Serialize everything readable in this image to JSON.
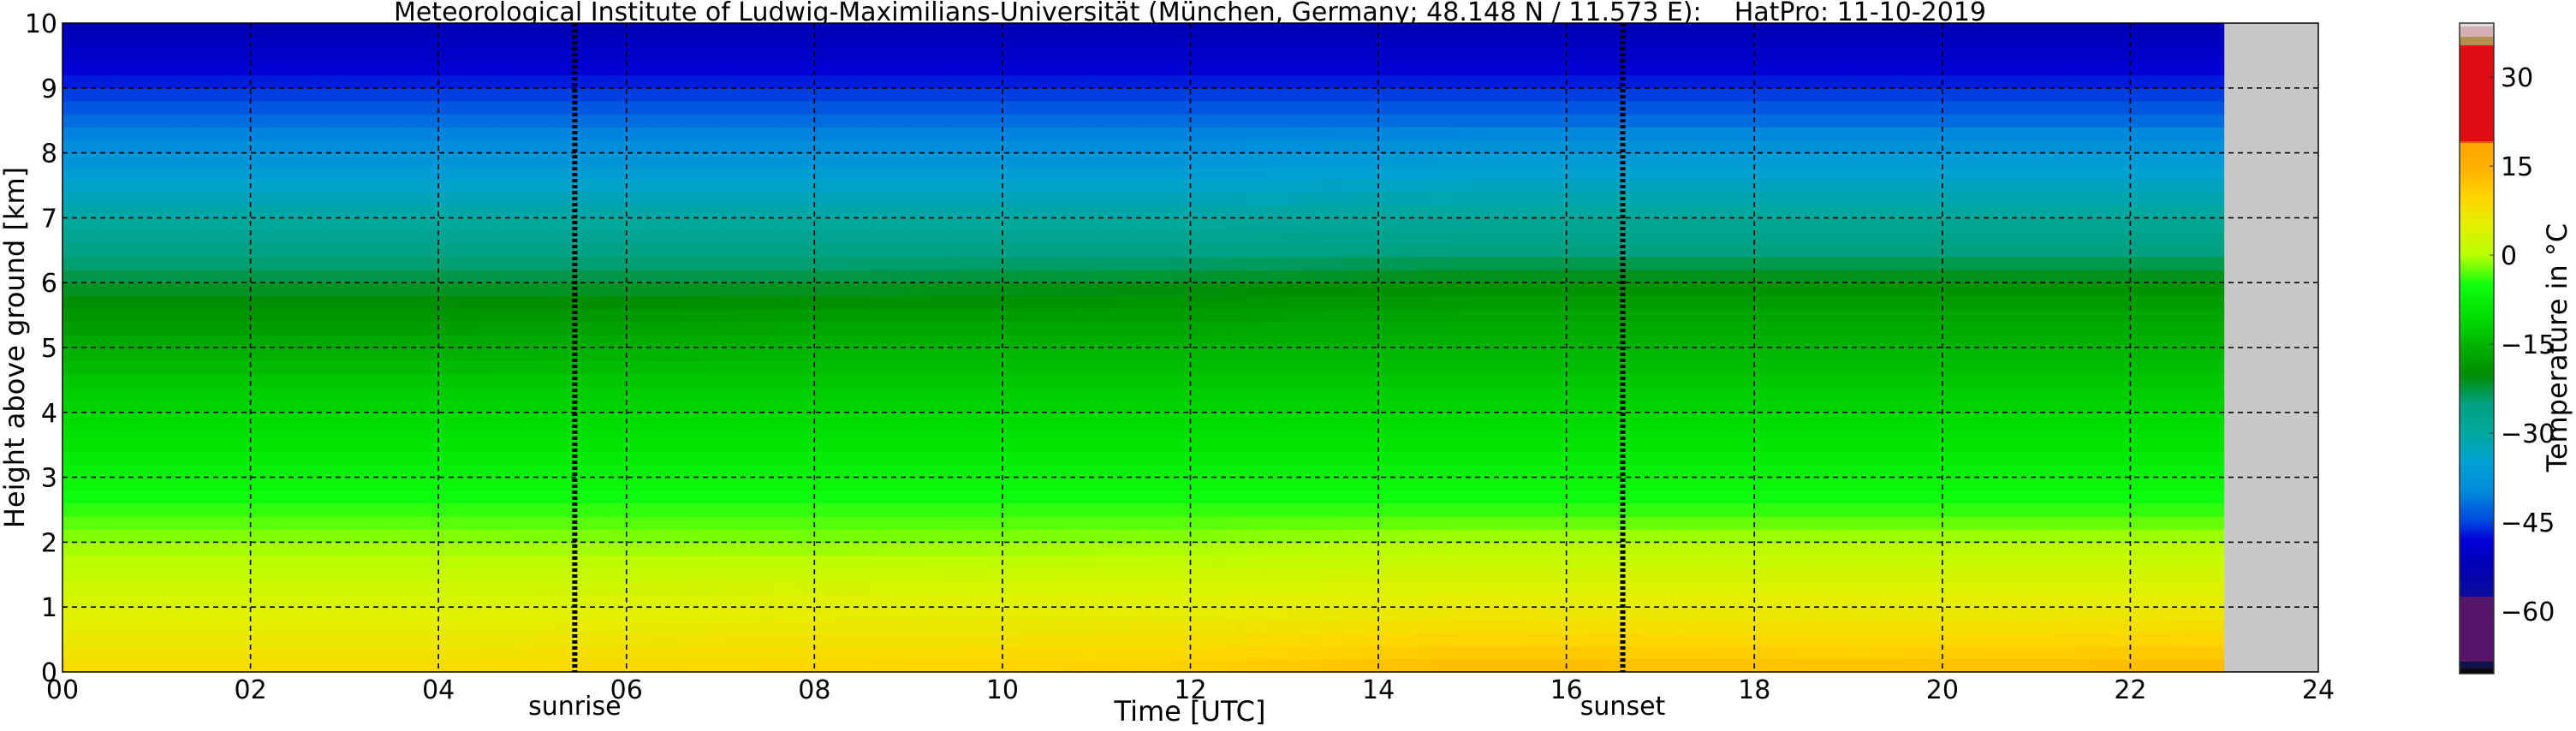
{
  "chart_data": {
    "type": "heatmap",
    "title": "Meteorological Institute of Ludwig-Maximilians-Universität (München, Germany; 48.148 N / 11.573 E):    HatPro: 11-10-2019",
    "xlabel": "Time [UTC]",
    "ylabel": "Height above ground [km]",
    "xlim": [
      0,
      24
    ],
    "ylim": [
      0,
      10
    ],
    "x_ticks": [
      "00",
      "02",
      "04",
      "06",
      "08",
      "10",
      "12",
      "14",
      "16",
      "18",
      "20",
      "22",
      "24"
    ],
    "y_ticks": [
      "0",
      "1",
      "2",
      "3",
      "4",
      "5",
      "6",
      "7",
      "8",
      "9",
      "10"
    ],
    "grid": true,
    "data_end_time": 23.0,
    "no_data_color": "#c8c8c8",
    "annotations": [
      {
        "label": "sunrise",
        "time": 5.45
      },
      {
        "label": "sunset",
        "time": 16.6
      }
    ],
    "heights_km": [
      0,
      0.5,
      1,
      1.5,
      2,
      2.5,
      3,
      3.5,
      4,
      4.5,
      5,
      5.5,
      6,
      6.5,
      7,
      7.5,
      8,
      8.5,
      9,
      9.5,
      10
    ],
    "profiles": [
      {
        "time": 0,
        "temps": [
          9,
          6.5,
          4,
          1.5,
          -1,
          -4,
          -7,
          -9,
          -11,
          -13,
          -16,
          -19,
          -22,
          -26,
          -30,
          -34,
          -38,
          -42,
          -46,
          -50,
          -52
        ]
      },
      {
        "time": 4,
        "temps": [
          9,
          6.5,
          4,
          1.5,
          -1,
          -4,
          -7,
          -9,
          -11,
          -13,
          -16,
          -19,
          -22,
          -26,
          -30,
          -34,
          -38,
          -42,
          -46,
          -50,
          -52
        ]
      },
      {
        "time": 8,
        "temps": [
          10,
          7.5,
          5,
          2,
          -1.5,
          -4,
          -7,
          -9,
          -11,
          -13,
          -15,
          -18,
          -22,
          -26,
          -30,
          -34,
          -38,
          -42,
          -46,
          -50,
          -52
        ]
      },
      {
        "time": 12,
        "temps": [
          11,
          8,
          5,
          2.5,
          -1,
          -4,
          -7,
          -9,
          -11,
          -13,
          -15,
          -18,
          -21,
          -26,
          -30,
          -34,
          -38,
          -42,
          -46,
          -50,
          -52
        ]
      },
      {
        "time": 15,
        "temps": [
          14,
          10,
          6,
          3,
          0,
          -4,
          -7,
          -9,
          -11,
          -13,
          -15,
          -17,
          -20,
          -25,
          -29,
          -33,
          -37,
          -42,
          -46,
          -50,
          -52
        ]
      },
      {
        "time": 19,
        "temps": [
          13,
          9,
          6,
          3,
          0,
          -4,
          -7,
          -9,
          -11,
          -13,
          -15,
          -17,
          -20,
          -25,
          -29,
          -33,
          -37,
          -42,
          -46,
          -50,
          -52
        ]
      },
      {
        "time": 23,
        "temps": [
          14,
          10,
          6,
          3,
          0,
          -4,
          -7,
          -9,
          -11,
          -13,
          -15,
          -17,
          -20,
          -25,
          -29,
          -33,
          -37,
          -42,
          -46,
          -50,
          -52
        ]
      }
    ],
    "colorbar": {
      "label": "Temperature in °C",
      "ticks": [
        "30",
        "15",
        "0",
        "−15",
        "−30",
        "−45",
        "−60"
      ],
      "tick_values": [
        30,
        15,
        0,
        -15,
        -30,
        -45,
        -60
      ],
      "range": [
        -70.5,
        39.1
      ],
      "stops": [
        {
          "t": -70.5,
          "color": "#000000"
        },
        {
          "t": -69.7,
          "color": "#101010"
        },
        {
          "t": -69.6,
          "color": "#12124a"
        },
        {
          "t": -68.5,
          "color": "#12124a"
        },
        {
          "t": -68.4,
          "color": "#57156a"
        },
        {
          "t": -57.5,
          "color": "#57156a"
        },
        {
          "t": -57.4,
          "color": "#0c0c9c"
        },
        {
          "t": -52,
          "color": "#0000b8"
        },
        {
          "t": -48,
          "color": "#0000d8"
        },
        {
          "t": -45,
          "color": "#0044e0"
        },
        {
          "t": -40,
          "color": "#0088dc"
        },
        {
          "t": -35,
          "color": "#00a0d4"
        },
        {
          "t": -30,
          "color": "#00a8a0"
        },
        {
          "t": -25,
          "color": "#00a080"
        },
        {
          "t": -20,
          "color": "#008e00"
        },
        {
          "t": -15,
          "color": "#00b400"
        },
        {
          "t": -10,
          "color": "#00e000"
        },
        {
          "t": -5,
          "color": "#10ff10"
        },
        {
          "t": 0,
          "color": "#b8ff00"
        },
        {
          "t": 5,
          "color": "#e4f000"
        },
        {
          "t": 10,
          "color": "#ffd400"
        },
        {
          "t": 15,
          "color": "#ffb000"
        },
        {
          "t": 19,
          "color": "#ffa500"
        },
        {
          "t": 19.1,
          "color": "#e00c14"
        },
        {
          "t": 35.3,
          "color": "#e00c14"
        },
        {
          "t": 35.4,
          "color": "#b09050"
        },
        {
          "t": 36.8,
          "color": "#b09050"
        },
        {
          "t": 36.9,
          "color": "#d4b0b0"
        },
        {
          "t": 38.4,
          "color": "#d4b0b0"
        },
        {
          "t": 38.5,
          "color": "#dcdcdc"
        },
        {
          "t": 39.1,
          "color": "#dcdcdc"
        }
      ]
    }
  }
}
